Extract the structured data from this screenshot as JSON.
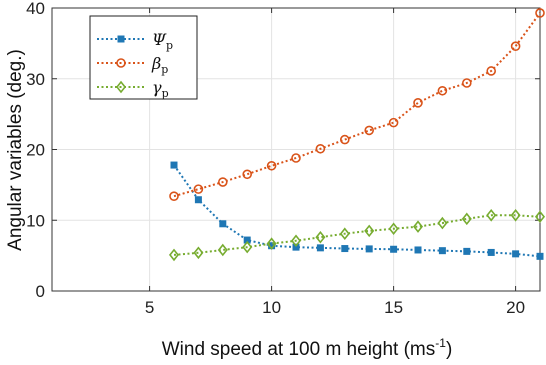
{
  "chart_data": {
    "type": "line",
    "title": "",
    "xlabel": "Wind speed at 100 m height (ms",
    "xlabel_sup": "-1",
    "xlabel_end": ")",
    "ylabel": "Angular variables (deg.)",
    "xlim": [
      1,
      21
    ],
    "ylim": [
      0,
      40
    ],
    "xticks": [
      5,
      10,
      15,
      20
    ],
    "yticks": [
      0,
      10,
      20,
      30,
      40
    ],
    "grid": true,
    "legend_position": "top-left",
    "x": [
      6,
      7,
      8,
      9,
      10,
      11,
      12,
      13,
      14,
      15,
      16,
      17,
      18,
      19,
      20,
      21
    ],
    "series": [
      {
        "name": "Ψ",
        "sub": "p",
        "color": "#1f77b4",
        "marker": "square",
        "values": [
          17.8,
          12.9,
          9.5,
          7.2,
          6.4,
          6.2,
          6.1,
          6.0,
          5.95,
          5.9,
          5.8,
          5.7,
          5.6,
          5.45,
          5.25,
          4.9
        ]
      },
      {
        "name": "β",
        "sub": "p",
        "color": "#d95319",
        "marker": "circle",
        "values": [
          13.4,
          14.4,
          15.4,
          16.5,
          17.7,
          18.8,
          20.1,
          21.4,
          22.7,
          23.8,
          26.6,
          28.3,
          29.4,
          31.1,
          34.6,
          39.3
        ]
      },
      {
        "name": "γ",
        "sub": "p",
        "color": "#77ac30",
        "marker": "diamond",
        "values": [
          5.1,
          5.4,
          5.8,
          6.2,
          6.7,
          7.1,
          7.6,
          8.1,
          8.5,
          8.8,
          9.1,
          9.6,
          10.2,
          10.7,
          10.7,
          10.5
        ]
      }
    ]
  }
}
